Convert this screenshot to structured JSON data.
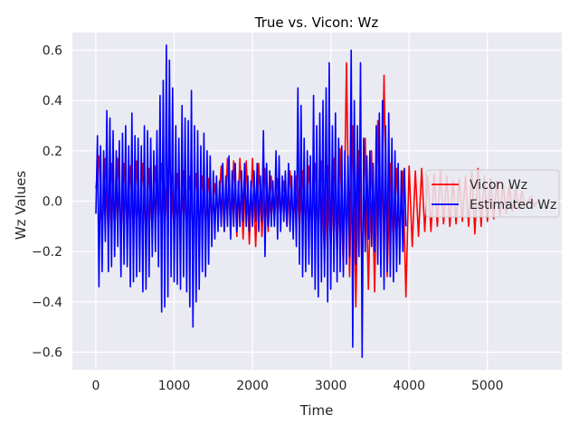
{
  "chart_data": {
    "type": "line",
    "title": "True vs. Vicon: Wz",
    "xlabel": "Time",
    "ylabel": "Wz Values",
    "xlim": [
      -300,
      5950
    ],
    "ylim": [
      -0.67,
      0.67
    ],
    "xticks": [
      0,
      1000,
      2000,
      3000,
      4000,
      5000
    ],
    "yticks": [
      -0.6,
      -0.4,
      -0.2,
      0.0,
      0.2,
      0.4,
      0.6
    ],
    "xtick_labels": [
      "0",
      "1000",
      "2000",
      "3000",
      "4000",
      "5000"
    ],
    "ytick_labels": [
      "−0.6",
      "−0.4",
      "−0.2",
      "0.0",
      "0.2",
      "0.4",
      "0.6"
    ],
    "grid": true,
    "background": "#eaeaf2",
    "legend": {
      "position": "right"
    },
    "series": [
      {
        "name": "Vicon Wz",
        "color": "#ff0000",
        "x_start": 0,
        "x_step": 40,
        "values": [
          0.05,
          0.18,
          -0.15,
          0.17,
          -0.16,
          0.15,
          -0.13,
          0.17,
          -0.14,
          0.15,
          -0.12,
          0.14,
          -0.13,
          0.16,
          -0.12,
          0.15,
          -0.14,
          0.13,
          -0.12,
          0.14,
          -0.1,
          0.15,
          -0.12,
          0.13,
          0.1,
          -0.12,
          0.11,
          -0.1,
          0.12,
          -0.11,
          0.1,
          -0.12,
          0.11,
          -0.09,
          0.1,
          -0.1,
          0.09,
          -0.08,
          0.07,
          -0.06,
          0.14,
          -0.12,
          0.17,
          -0.13,
          0.16,
          -0.14,
          0.17,
          -0.15,
          0.16,
          -0.17,
          0.17,
          -0.18,
          0.15,
          -0.14,
          0.13,
          -0.12,
          0.1,
          -0.08,
          0.09,
          -0.07,
          0.08,
          -0.1,
          0.12,
          -0.09,
          0.1,
          -0.11,
          0.12,
          -0.1,
          0.14,
          -0.12,
          0.15,
          -0.13,
          0.16,
          -0.25,
          0.14,
          -0.2,
          0.17,
          -0.22,
          0.21,
          -0.28,
          0.55,
          -0.3,
          0.3,
          -0.42,
          0.2,
          -0.3,
          0.25,
          -0.35,
          0.2,
          -0.36,
          0.32,
          -0.25,
          0.5,
          -0.3,
          0.15,
          -0.2,
          0.13,
          -0.15,
          0.12,
          -0.38,
          0.14,
          -0.18,
          0.12,
          -0.14,
          0.13,
          -0.12,
          0.1,
          -0.12,
          0.11,
          -0.1,
          0.12,
          -0.09,
          0.1,
          -0.1,
          0.08,
          -0.09,
          0.09,
          -0.08,
          0.1,
          -0.1,
          0.12,
          -0.13,
          0.13,
          -0.1,
          0.1,
          -0.08,
          0.09,
          -0.07,
          0.08,
          -0.06,
          0.07,
          -0.05,
          0.06,
          -0.04,
          0.05,
          -0.03,
          0.04,
          -0.02,
          0.0,
          0.02,
          -0.02,
          0.0
        ]
      },
      {
        "name": "Estimated Wz",
        "color": "#0000ff",
        "x_start": 0,
        "x_step": 20,
        "values": [
          -0.05,
          0.26,
          -0.34,
          0.22,
          -0.28,
          0.2,
          -0.16,
          0.36,
          -0.28,
          0.33,
          -0.26,
          0.28,
          -0.22,
          0.2,
          -0.18,
          0.24,
          -0.3,
          0.27,
          -0.25,
          0.3,
          -0.26,
          0.22,
          -0.34,
          0.35,
          -0.32,
          0.26,
          -0.3,
          0.25,
          -0.28,
          0.22,
          -0.36,
          0.3,
          -0.35,
          0.28,
          -0.3,
          0.25,
          -0.22,
          0.2,
          -0.2,
          0.28,
          -0.26,
          0.42,
          -0.44,
          0.48,
          -0.42,
          0.62,
          -0.38,
          0.56,
          -0.3,
          0.45,
          -0.32,
          0.3,
          -0.33,
          0.25,
          -0.35,
          0.38,
          -0.3,
          0.33,
          -0.36,
          0.32,
          -0.42,
          0.44,
          -0.5,
          0.3,
          -0.4,
          0.28,
          -0.35,
          0.22,
          -0.28,
          0.27,
          -0.3,
          0.2,
          -0.25,
          0.18,
          -0.18,
          0.12,
          -0.15,
          0.1,
          -0.12,
          0.08,
          -0.1,
          0.15,
          -0.12,
          0.1,
          -0.1,
          0.18,
          -0.15,
          0.12,
          -0.1,
          0.15,
          -0.12,
          0.08,
          -0.1,
          0.12,
          -0.08,
          0.15,
          -0.1,
          0.1,
          -0.12,
          0.08,
          -0.1,
          0.12,
          -0.08,
          0.15,
          -0.12,
          0.1,
          -0.08,
          0.28,
          -0.22,
          0.15,
          -0.1,
          0.12,
          -0.1,
          0.08,
          -0.1,
          0.2,
          -0.15,
          0.18,
          -0.12,
          0.1,
          -0.08,
          0.12,
          -0.1,
          0.15,
          -0.12,
          0.1,
          -0.15,
          0.12,
          -0.18,
          0.45,
          -0.25,
          0.38,
          -0.3,
          0.25,
          -0.28,
          0.2,
          -0.25,
          0.18,
          -0.3,
          0.42,
          -0.35,
          0.3,
          -0.38,
          0.35,
          -0.32,
          0.4,
          -0.3,
          0.45,
          -0.4,
          0.55,
          -0.35,
          0.3,
          -0.28,
          0.35,
          -0.32,
          0.25,
          -0.28,
          0.22,
          -0.3,
          0.2,
          -0.25,
          0.18,
          -0.22,
          0.6,
          -0.58,
          0.4,
          -0.25,
          0.3,
          -0.22,
          0.55,
          -0.62,
          0.25,
          -0.2,
          0.18,
          -0.15,
          0.2,
          -0.18,
          0.15,
          -0.2,
          0.3,
          -0.25,
          0.35,
          -0.3,
          0.4,
          -0.35,
          0.3,
          -0.28,
          0.35,
          -0.3,
          0.25,
          -0.32,
          0.2,
          -0.28,
          0.15,
          -0.25,
          0.12,
          -0.2,
          0.13,
          -0.1
        ]
      }
    ]
  }
}
